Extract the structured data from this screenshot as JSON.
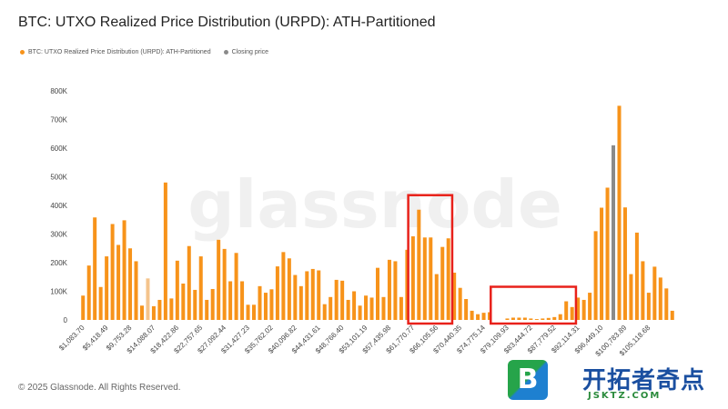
{
  "chart_data": {
    "type": "bar",
    "title": "BTC: UTXO Realized Price Distribution (URPD): ATH-Partitioned",
    "watermark": "glassnode",
    "legend_position": "top-left",
    "series": [
      {
        "name": "BTC: UTXO Realized Price Distribution (URPD): ATH-Partitioned",
        "color": "#f7931a"
      },
      {
        "name": "Closing price",
        "color": "#8a8a8a"
      }
    ],
    "ylim": [
      0,
      800000
    ],
    "y_ticks": [
      {
        "value": 0,
        "label": "0"
      },
      {
        "value": 100000,
        "label": "100K"
      },
      {
        "value": 200000,
        "label": "200K"
      },
      {
        "value": 300000,
        "label": "300K"
      },
      {
        "value": 400000,
        "label": "400K"
      },
      {
        "value": 500000,
        "label": "500K"
      },
      {
        "value": 600000,
        "label": "600K"
      },
      {
        "value": 700000,
        "label": "700K"
      },
      {
        "value": 800000,
        "label": "800K"
      }
    ],
    "x_tick_labels": [
      {
        "bar_index": 0,
        "label": "$1,083.70"
      },
      {
        "bar_index": 4,
        "label": "$5,418.49"
      },
      {
        "bar_index": 8,
        "label": "$9,753.28"
      },
      {
        "bar_index": 12,
        "label": "$14,088.07"
      },
      {
        "bar_index": 16,
        "label": "$18,422.86"
      },
      {
        "bar_index": 20,
        "label": "$22,757.65"
      },
      {
        "bar_index": 24,
        "label": "$27,092.44"
      },
      {
        "bar_index": 28,
        "label": "$31,427.23"
      },
      {
        "bar_index": 32,
        "label": "$35,762.02"
      },
      {
        "bar_index": 36,
        "label": "$40,096.82"
      },
      {
        "bar_index": 40,
        "label": "$44,431.61"
      },
      {
        "bar_index": 44,
        "label": "$48,766.40"
      },
      {
        "bar_index": 48,
        "label": "$53,101.19"
      },
      {
        "bar_index": 52,
        "label": "$57,435.98"
      },
      {
        "bar_index": 56,
        "label": "$61,770.77"
      },
      {
        "bar_index": 60,
        "label": "$66,105.56"
      },
      {
        "bar_index": 64,
        "label": "$70,440.35"
      },
      {
        "bar_index": 68,
        "label": "$74,775.14"
      },
      {
        "bar_index": 72,
        "label": "$79,109.93"
      },
      {
        "bar_index": 76,
        "label": "$83,444.72"
      },
      {
        "bar_index": 80,
        "label": "$87,779.52"
      },
      {
        "bar_index": 84,
        "label": "$92,114.31"
      },
      {
        "bar_index": 88,
        "label": "$96,449.10"
      },
      {
        "bar_index": 92,
        "label": "$100,783.89"
      },
      {
        "bar_index": 96,
        "label": "$105,118.68"
      }
    ],
    "highlight_ranges": [
      {
        "from_bar": 56,
        "to_bar": 62,
        "color": "#e8211a"
      },
      {
        "from_bar": 70,
        "to_bar": 83,
        "color": "#e8211a"
      }
    ],
    "closing_price_bar_index": 90,
    "values": [
      85000,
      190000,
      358000,
      115000,
      222000,
      335000,
      262000,
      348000,
      250000,
      205000,
      50000,
      145000,
      48000,
      70000,
      480000,
      75000,
      207000,
      127000,
      258000,
      105000,
      222000,
      70000,
      108000,
      280000,
      248000,
      135000,
      234000,
      135000,
      53000,
      53000,
      118000,
      95000,
      107000,
      187000,
      237000,
      215000,
      157000,
      118000,
      170000,
      178000,
      173000,
      55000,
      80000,
      140000,
      137000,
      70000,
      100000,
      50000,
      85000,
      78000,
      182000,
      80000,
      210000,
      205000,
      80000,
      245000,
      292000,
      385000,
      288000,
      288000,
      160000,
      255000,
      285000,
      165000,
      112000,
      73000,
      32000,
      20000,
      25000,
      27000,
      0,
      0,
      5000,
      8000,
      8000,
      8000,
      5000,
      3000,
      5000,
      7000,
      10000,
      20000,
      65000,
      45000,
      78000,
      70000,
      95000,
      310000,
      392000,
      462000,
      610000,
      748000,
      393000,
      160000,
      305000,
      205000,
      95000,
      186000,
      148000,
      110000,
      32000
    ],
    "bar_colors": [
      "#f7931a",
      "#f7931a",
      "#f7931a",
      "#f7931a",
      "#f7931a",
      "#f7931a",
      "#f7931a",
      "#f7931a",
      "#f7931a",
      "#f7931a",
      "#f7931a",
      "#f4c48c",
      "#f7931a",
      "#f7931a",
      "#f7931a",
      "#f7931a",
      "#f7931a",
      "#f7931a",
      "#f7931a",
      "#f7931a",
      "#f7931a",
      "#f7931a",
      "#f7931a",
      "#f7931a",
      "#f7931a",
      "#f7931a",
      "#f7931a",
      "#f7931a",
      "#f7931a",
      "#f7931a",
      "#f7931a",
      "#f7931a",
      "#f7931a",
      "#f7931a",
      "#f7931a",
      "#f7931a",
      "#f7931a",
      "#f7931a",
      "#f7931a",
      "#f7931a",
      "#f7931a",
      "#f7931a",
      "#f7931a",
      "#f7931a",
      "#f7931a",
      "#f7931a",
      "#f7931a",
      "#f7931a",
      "#f7931a",
      "#f7931a",
      "#f7931a",
      "#f7931a",
      "#f7931a",
      "#f7931a",
      "#f7931a",
      "#f7931a",
      "#f7931a",
      "#f7931a",
      "#f7931a",
      "#f7931a",
      "#f7931a",
      "#f7931a",
      "#f7931a",
      "#f7931a",
      "#f7931a",
      "#f7931a",
      "#f7931a",
      "#f7931a",
      "#f7931a",
      "#f7931a",
      "#f7931a",
      "#f7931a",
      "#f7931a",
      "#f7931a",
      "#f7931a",
      "#f7931a",
      "#f7931a",
      "#f7931a",
      "#f7931a",
      "#f7931a",
      "#f7931a",
      "#f7931a",
      "#f7931a",
      "#f7931a",
      "#f7931a",
      "#f7931a",
      "#f7931a",
      "#f7931a",
      "#f7931a",
      "#f7931a",
      "#8a8a8a",
      "#f7931a",
      "#f7931a",
      "#f7931a",
      "#f7931a",
      "#f7931a",
      "#f7931a",
      "#f7931a",
      "#f7931a",
      "#f7931a",
      "#f7931a"
    ]
  },
  "footer": {
    "copyright": "© 2025 Glassnode. All Rights Reserved."
  },
  "logo": {
    "icon_letter": "B",
    "cn_text": "开拓者奇点",
    "domain": "JSKTZ.COM"
  }
}
